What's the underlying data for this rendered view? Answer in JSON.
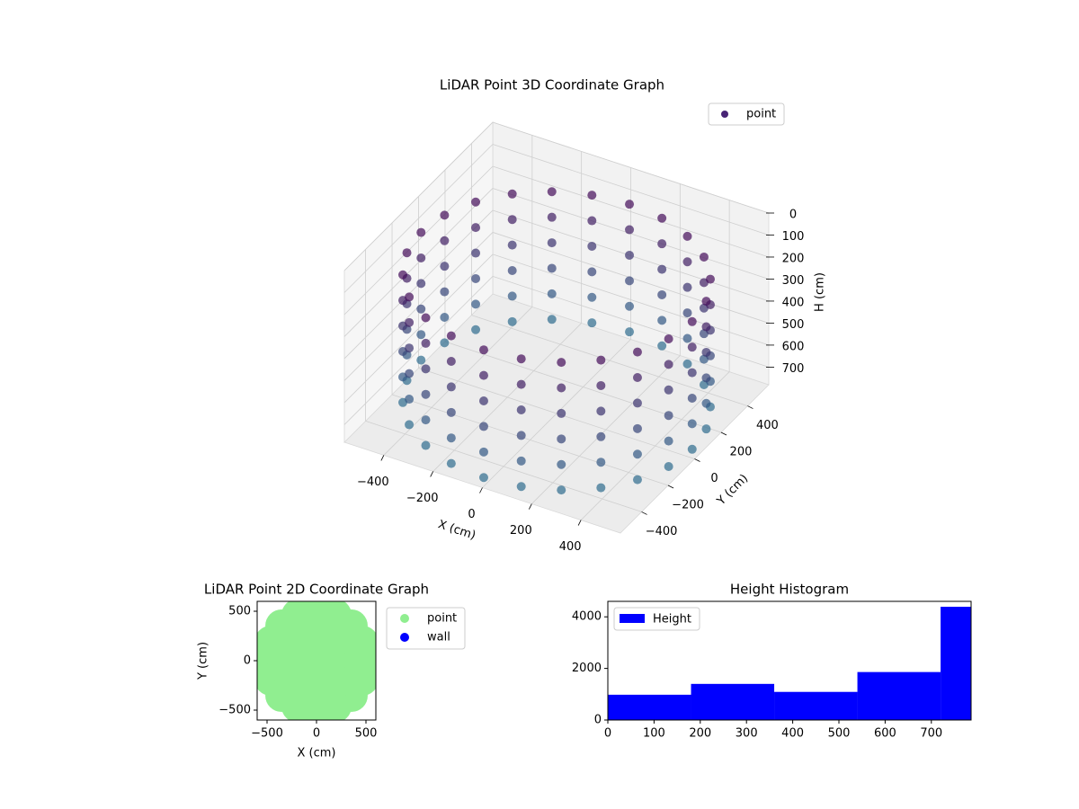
{
  "chart_data": [
    {
      "type": "scatter3d",
      "title": "LiDAR Point 3D Coordinate Graph",
      "xlabel": "X (cm)",
      "ylabel": "Y (cm)",
      "zlabel": "H (cm)",
      "xlim": [
        -560,
        560
      ],
      "ylim": [
        -560,
        560
      ],
      "zlim": [
        0,
        780
      ],
      "zinvert": true,
      "xticks": [
        {
          "value": -400,
          "label": "−400"
        },
        {
          "value": -200,
          "label": "−200"
        },
        0,
        200,
        400
      ],
      "yticks": [
        {
          "value": -400,
          "label": "−400"
        },
        {
          "value": -200,
          "label": "−200"
        },
        0,
        200,
        400
      ],
      "zticks": [
        0,
        100,
        200,
        300,
        400,
        500,
        600,
        700
      ],
      "cmap": [
        "#450d5a",
        "#2f6c8e"
      ],
      "legend": "upper right",
      "series": [
        {
          "name": "point",
          "color": "#482475",
          "x": [
            550,
            531,
            476,
            389,
            275,
            142,
            0,
            -142,
            -275,
            -389,
            -476,
            -531,
            -550,
            -531,
            -476,
            -389,
            -275,
            -142,
            0,
            142,
            275,
            389,
            476,
            531,
            550,
            531,
            476,
            389,
            275,
            142,
            0,
            -142,
            -275,
            -389,
            -476,
            -531,
            -550,
            -531,
            -476,
            -389,
            -275,
            -142,
            0,
            142,
            275,
            389,
            476,
            531,
            550,
            531,
            476,
            389,
            275,
            142,
            0,
            -142,
            -275,
            -389,
            -476,
            -531,
            -550,
            -531,
            -476,
            -389,
            -275,
            -142,
            0,
            142,
            275,
            389,
            476,
            531,
            550,
            531,
            476,
            389,
            275,
            142,
            0,
            -142,
            -275,
            -389,
            -476,
            -531,
            -550,
            -531,
            -476,
            -389,
            -275,
            -142,
            0,
            142,
            275,
            389,
            476,
            531,
            550,
            531,
            476,
            389,
            275,
            142,
            0,
            -142,
            -275,
            -389,
            -476,
            -531,
            -550,
            -531,
            -476,
            -389,
            -275,
            -142,
            0,
            142,
            275,
            389,
            476,
            531,
            550,
            531,
            476,
            389,
            275,
            142,
            0,
            -142,
            -275,
            -389,
            -476,
            -531,
            -550,
            -531,
            -476,
            -389,
            -275,
            -142,
            0,
            142,
            275,
            389,
            476,
            531
          ],
          "y": [
            0,
            142,
            275,
            389,
            476,
            531,
            550,
            531,
            476,
            389,
            275,
            142,
            0,
            -142,
            -275,
            -389,
            -476,
            -531,
            -550,
            -531,
            -476,
            -389,
            -275,
            -142,
            0,
            142,
            275,
            389,
            476,
            531,
            550,
            531,
            476,
            389,
            275,
            142,
            0,
            -142,
            -275,
            -389,
            -476,
            -531,
            -550,
            -531,
            -476,
            -389,
            -275,
            -142,
            0,
            142,
            275,
            389,
            476,
            531,
            550,
            531,
            476,
            389,
            275,
            142,
            0,
            -142,
            -275,
            -389,
            -476,
            -531,
            -550,
            -531,
            -476,
            -389,
            -275,
            -142,
            0,
            142,
            275,
            389,
            476,
            531,
            550,
            531,
            476,
            389,
            275,
            142,
            0,
            -142,
            -275,
            -389,
            -476,
            -531,
            -550,
            -531,
            -476,
            -389,
            -275,
            -142,
            0,
            142,
            275,
            389,
            476,
            531,
            550,
            531,
            476,
            389,
            275,
            142,
            0,
            -142,
            -275,
            -389,
            -476,
            -531,
            -550,
            -531,
            -476,
            -389,
            -275,
            -142,
            0,
            142,
            275,
            389,
            476,
            531,
            550,
            531,
            476,
            389,
            275,
            142,
            0,
            -142,
            -275,
            -389,
            -476,
            -531,
            -550,
            -531,
            -476,
            -389,
            -275,
            -142
          ],
          "h": [
            160,
            160,
            160,
            160,
            160,
            160,
            160,
            160,
            160,
            160,
            160,
            160,
            160,
            160,
            160,
            160,
            160,
            160,
            160,
            160,
            160,
            160,
            160,
            160,
            276,
            276,
            276,
            276,
            276,
            276,
            276,
            276,
            276,
            276,
            276,
            276,
            276,
            276,
            276,
            276,
            276,
            276,
            276,
            276,
            276,
            276,
            276,
            276,
            392,
            392,
            392,
            392,
            392,
            392,
            392,
            392,
            392,
            392,
            392,
            392,
            392,
            392,
            392,
            392,
            392,
            392,
            392,
            392,
            392,
            392,
            392,
            392,
            508,
            508,
            508,
            508,
            508,
            508,
            508,
            508,
            508,
            508,
            508,
            508,
            508,
            508,
            508,
            508,
            508,
            508,
            508,
            508,
            508,
            508,
            508,
            508,
            624,
            624,
            624,
            624,
            624,
            624,
            624,
            624,
            624,
            624,
            624,
            624,
            624,
            624,
            624,
            624,
            624,
            624,
            624,
            624,
            624,
            624,
            624,
            624,
            740,
            740,
            740,
            740,
            740,
            740,
            740,
            740,
            740,
            740,
            740,
            740,
            740,
            740,
            740,
            740,
            740,
            740,
            740,
            740,
            740,
            740,
            740,
            740
          ]
        }
      ]
    },
    {
      "type": "scatter",
      "title": "LiDAR Point 2D Coordinate Graph",
      "xlabel": "X (cm)",
      "ylabel": "Y (cm)",
      "xlim": [
        -600,
        600
      ],
      "ylim": [
        -600,
        600
      ],
      "xticks": [
        {
          "value": -500,
          "label": "−500"
        },
        0,
        500
      ],
      "yticks": [
        {
          "value": -500,
          "label": "−500"
        },
        0,
        500
      ],
      "legend": "outside right",
      "series": [
        {
          "name": "point",
          "color": "#90ee90",
          "x": [
            500,
            462,
            354,
            191,
            0,
            -191,
            -354,
            -462,
            -500,
            -462,
            -354,
            -191,
            0,
            191,
            354,
            462,
            300,
            212,
            0,
            -212,
            -300,
            -212,
            0,
            212,
            0
          ],
          "y": [
            0,
            191,
            354,
            462,
            500,
            462,
            354,
            191,
            0,
            -191,
            -354,
            -462,
            -500,
            -462,
            -354,
            -191,
            0,
            212,
            300,
            212,
            0,
            -212,
            -300,
            -212,
            0
          ]
        },
        {
          "name": "wall",
          "color": "#0000ff",
          "x": [],
          "y": []
        }
      ]
    },
    {
      "type": "histogram",
      "title": "Height Histogram",
      "bins": [
        0,
        180,
        360,
        540,
        720,
        786
      ],
      "counts": [
        980,
        1400,
        1090,
        1860,
        4390
      ],
      "xlim": [
        0,
        786
      ],
      "ylim": [
        0,
        4600
      ],
      "xticks": [
        0,
        100,
        200,
        300,
        400,
        500,
        600,
        700
      ],
      "yticks": [
        0,
        2000,
        4000
      ],
      "series_name": "Height",
      "color": "#0000ff",
      "legend": "upper left"
    }
  ]
}
